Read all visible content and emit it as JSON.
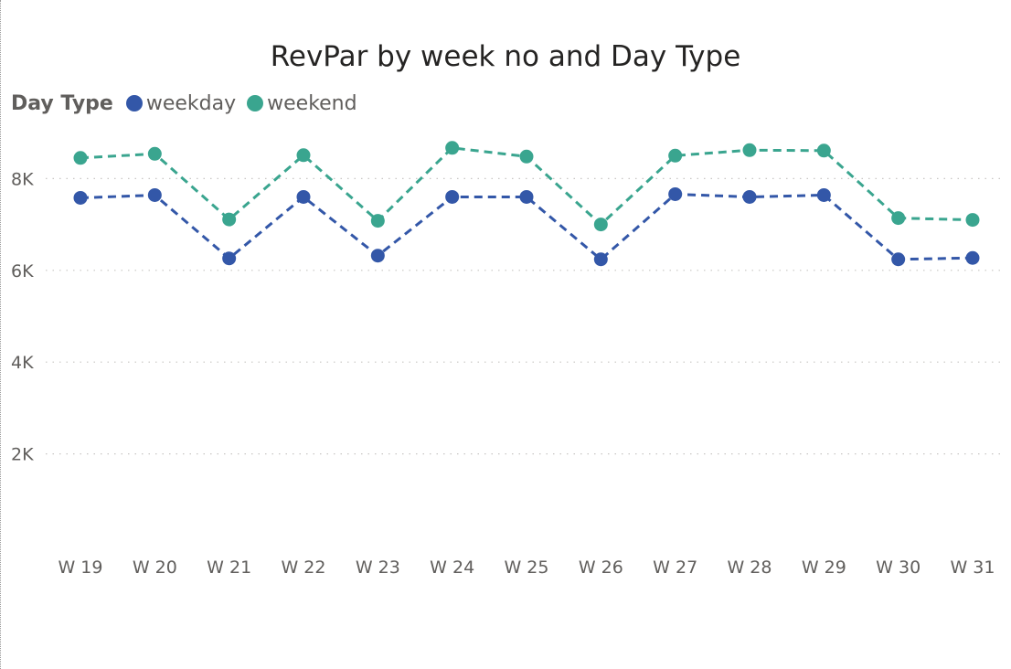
{
  "chart_data": {
    "type": "line",
    "title": "RevPar by week no and Day Type",
    "legend_title": "Day Type",
    "legend_position": "top-left",
    "grid": true,
    "categories": [
      "W 19",
      "W 20",
      "W 21",
      "W 22",
      "W 23",
      "W 24",
      "W 25",
      "W 26",
      "W 27",
      "W 28",
      "W 29",
      "W 30",
      "W 31"
    ],
    "ylim": [
      0,
      9000
    ],
    "yticks": [
      2000,
      4000,
      6000,
      8000
    ],
    "ytick_labels": [
      "2K",
      "4K",
      "6K",
      "8K"
    ],
    "series": [
      {
        "name": "weekday",
        "color": "#3357A8",
        "values": [
          7580,
          7640,
          6260,
          7600,
          6320,
          7600,
          7600,
          6240,
          7660,
          7600,
          7640,
          6240,
          6270
        ]
      },
      {
        "name": "weekend",
        "color": "#3AA58F",
        "values": [
          8450,
          8540,
          7110,
          8510,
          7080,
          8670,
          8480,
          7000,
          8500,
          8620,
          8610,
          7140,
          7100
        ]
      }
    ]
  }
}
